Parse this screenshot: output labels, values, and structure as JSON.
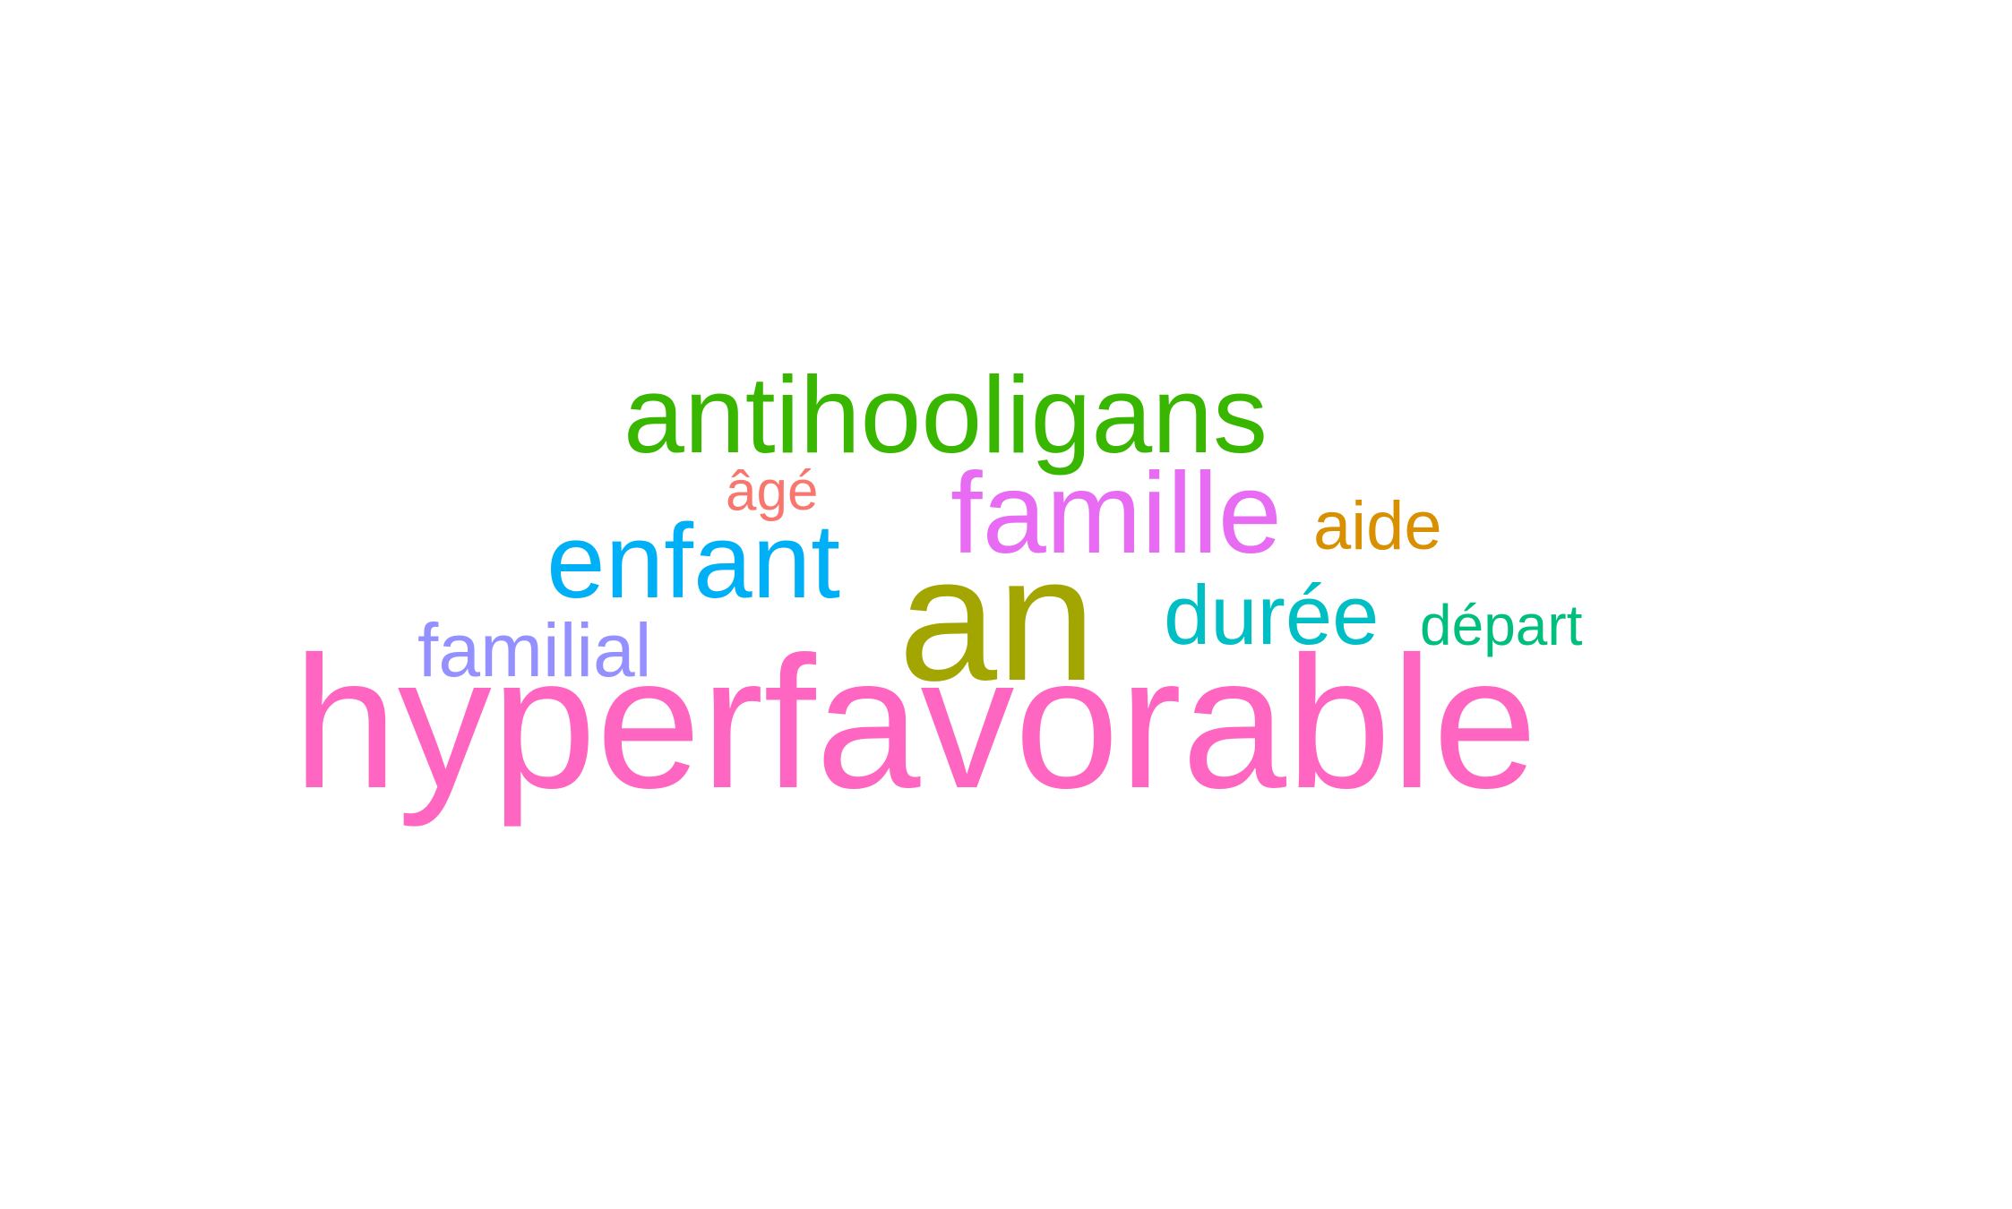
{
  "words": [
    {
      "id": "w-hyperfavorable",
      "text": "hyperfavorable",
      "color": "#ff66c2"
    },
    {
      "id": "w-an",
      "text": "an",
      "color": "#a3a500"
    },
    {
      "id": "w-antihooligans",
      "text": "antihooligans",
      "color": "#39b600"
    },
    {
      "id": "w-famille",
      "text": "famille",
      "color": "#e76bf3"
    },
    {
      "id": "w-enfant",
      "text": "enfant",
      "color": "#00b0f6"
    },
    {
      "id": "w-duree",
      "text": "durée",
      "color": "#00bfc4"
    },
    {
      "id": "w-familial",
      "text": "familial",
      "color": "#9590ff"
    },
    {
      "id": "w-aide",
      "text": "aide",
      "color": "#d89000"
    },
    {
      "id": "w-depart",
      "text": "départ",
      "color": "#00bf7d"
    },
    {
      "id": "w-age",
      "text": "âgé",
      "color": "#f8766d"
    }
  ]
}
